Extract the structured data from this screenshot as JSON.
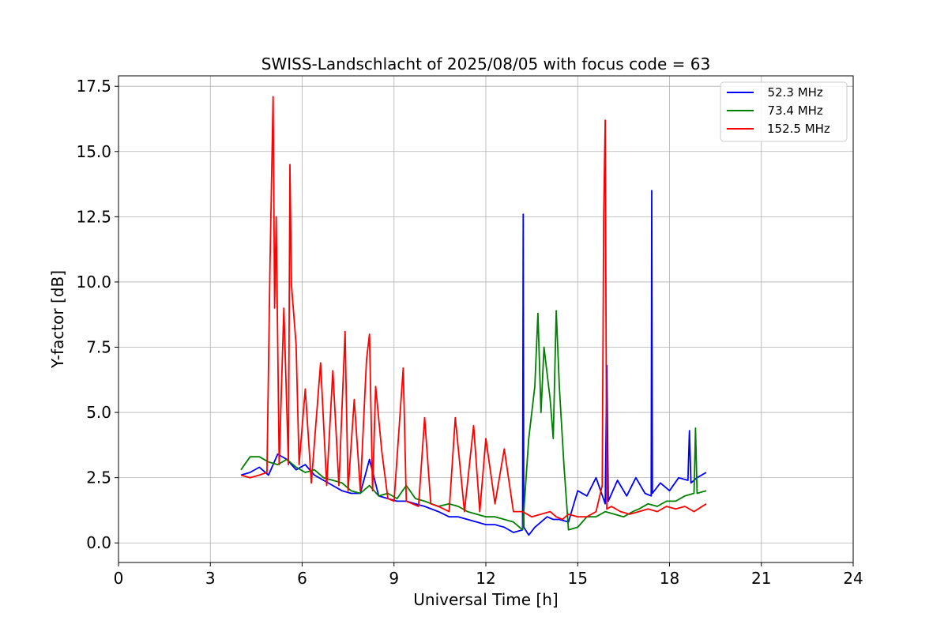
{
  "chart_data": {
    "type": "line",
    "title": "SWISS-Landschlacht of 2025/08/05 with focus code = 63",
    "xlabel": "Universal Time [h]",
    "ylabel": "Y-factor [dB]",
    "xlim": [
      0,
      24
    ],
    "ylim": [
      -0.75,
      17.9
    ],
    "xticks": [
      0,
      3,
      6,
      9,
      12,
      15,
      18,
      21,
      24
    ],
    "xtick_labels": [
      "0",
      "3",
      "6",
      "9",
      "12",
      "15",
      "18",
      "21",
      "24"
    ],
    "yticks": [
      0,
      2.5,
      5,
      7.5,
      10,
      12.5,
      15,
      17.5
    ],
    "ytick_labels": [
      "0.0",
      "2.5",
      "5.0",
      "7.5",
      "10.0",
      "12.5",
      "15.0",
      "17.5"
    ],
    "grid": true,
    "legend_position": "top-right",
    "series": [
      {
        "name": "52.3 MHz",
        "legend_label": "  52.3 MHz",
        "color": "#0000ff",
        "x": [
          4.0,
          4.3,
          4.6,
          4.9,
          5.2,
          5.5,
          5.8,
          6.1,
          6.4,
          6.7,
          7.0,
          7.3,
          7.6,
          7.9,
          8.2,
          8.5,
          8.8,
          9.1,
          9.4,
          9.7,
          10.0,
          10.45,
          10.8,
          11.1,
          11.4,
          11.7,
          12.0,
          12.3,
          12.6,
          12.9,
          13.2,
          13.22,
          13.24,
          13.4,
          13.6,
          13.8,
          14.0,
          14.2,
          14.4,
          14.7,
          15.0,
          15.3,
          15.6,
          15.9,
          15.95,
          16.0,
          16.3,
          16.6,
          16.9,
          17.2,
          17.4,
          17.42,
          17.44,
          17.7,
          18.0,
          18.3,
          18.6,
          18.65,
          18.7,
          18.9,
          19.2
        ],
        "y": [
          2.6,
          2.7,
          2.9,
          2.6,
          3.4,
          3.2,
          2.8,
          3.0,
          2.6,
          2.4,
          2.2,
          2.0,
          1.9,
          1.9,
          3.2,
          1.8,
          1.7,
          1.6,
          1.6,
          1.5,
          1.4,
          1.2,
          1.0,
          1.0,
          0.9,
          0.8,
          0.7,
          0.7,
          0.6,
          0.4,
          0.5,
          12.6,
          0.6,
          0.3,
          0.6,
          0.8,
          1.0,
          0.9,
          0.9,
          0.8,
          2.0,
          1.8,
          2.5,
          1.5,
          6.8,
          1.6,
          2.4,
          1.8,
          2.5,
          1.9,
          1.8,
          13.5,
          1.9,
          2.3,
          2.0,
          2.5,
          2.4,
          4.3,
          2.3,
          2.5,
          2.7
        ]
      },
      {
        "name": "73.4 MHz",
        "legend_label": "  73.4 MHz",
        "color": "#008000",
        "x": [
          4.0,
          4.3,
          4.6,
          4.9,
          5.2,
          5.5,
          5.8,
          6.1,
          6.4,
          6.7,
          7.0,
          7.3,
          7.6,
          7.9,
          8.2,
          8.5,
          8.8,
          9.1,
          9.4,
          9.7,
          10.0,
          10.45,
          10.8,
          11.1,
          11.4,
          11.7,
          12.0,
          12.3,
          12.6,
          12.9,
          13.2,
          13.4,
          13.6,
          13.7,
          13.8,
          13.9,
          14.0,
          14.1,
          14.2,
          14.3,
          14.4,
          14.55,
          14.7,
          15.0,
          15.3,
          15.6,
          15.9,
          16.2,
          16.5,
          16.8,
          17.0,
          17.3,
          17.6,
          17.9,
          18.2,
          18.5,
          18.8,
          18.85,
          18.9,
          19.2
        ],
        "y": [
          2.8,
          3.3,
          3.3,
          3.1,
          3.0,
          3.2,
          2.9,
          2.7,
          2.8,
          2.5,
          2.4,
          2.3,
          2.0,
          1.9,
          2.2,
          1.8,
          1.9,
          1.7,
          2.2,
          1.7,
          1.6,
          1.4,
          1.5,
          1.4,
          1.2,
          1.1,
          1.0,
          1.0,
          0.9,
          0.8,
          0.5,
          4.0,
          6.0,
          8.8,
          5.0,
          7.5,
          6.5,
          5.5,
          4.0,
          8.9,
          6.0,
          3.0,
          0.5,
          0.6,
          1.0,
          1.0,
          1.2,
          1.1,
          1.0,
          1.2,
          1.3,
          1.5,
          1.4,
          1.6,
          1.6,
          1.8,
          1.9,
          4.4,
          1.9,
          2.0
        ]
      },
      {
        "name": "152.5 MHz",
        "legend_label": "152.5 MHz",
        "color": "#ff0000",
        "x": [
          4.0,
          4.3,
          4.6,
          4.85,
          4.95,
          5.05,
          5.1,
          5.15,
          5.25,
          5.4,
          5.55,
          5.6,
          5.65,
          5.8,
          5.9,
          6.1,
          6.3,
          6.6,
          6.8,
          7.0,
          7.2,
          7.4,
          7.5,
          7.7,
          7.9,
          8.1,
          8.2,
          8.3,
          8.4,
          8.6,
          8.8,
          9.0,
          9.3,
          9.4,
          9.6,
          9.8,
          10.0,
          10.2,
          10.45,
          10.8,
          11.0,
          11.3,
          11.6,
          11.8,
          12.0,
          12.3,
          12.6,
          12.9,
          13.2,
          13.5,
          13.8,
          14.1,
          14.3,
          14.5,
          14.7,
          15.0,
          15.3,
          15.6,
          15.8,
          15.85,
          15.9,
          15.95,
          16.1,
          16.4,
          16.7,
          17.0,
          17.3,
          17.6,
          17.9,
          18.2,
          18.5,
          18.8,
          19.2
        ],
        "y": [
          2.6,
          2.5,
          2.6,
          2.7,
          10.7,
          17.1,
          9.0,
          12.5,
          3.0,
          9.0,
          3.0,
          14.5,
          9.9,
          7.6,
          3.0,
          5.9,
          2.3,
          6.9,
          2.2,
          6.6,
          2.2,
          8.1,
          2.0,
          5.5,
          2.0,
          7.0,
          8.0,
          2.0,
          6.0,
          3.5,
          1.7,
          1.6,
          6.7,
          1.6,
          1.5,
          1.4,
          4.8,
          1.5,
          1.4,
          1.2,
          4.8,
          1.2,
          4.5,
          1.2,
          4.0,
          1.5,
          3.6,
          1.2,
          1.2,
          1.0,
          1.1,
          1.2,
          1.0,
          0.9,
          1.1,
          1.0,
          1.0,
          1.2,
          2.2,
          12.6,
          16.2,
          1.3,
          1.4,
          1.2,
          1.1,
          1.2,
          1.3,
          1.2,
          1.4,
          1.3,
          1.4,
          1.2,
          1.5
        ]
      }
    ]
  }
}
